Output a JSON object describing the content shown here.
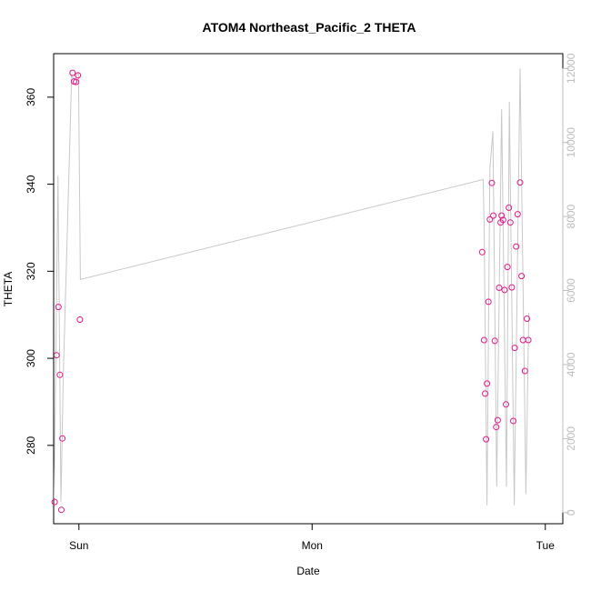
{
  "chart_data": {
    "type": "scatter",
    "title": "ATOM4 Northeast_Pacific_2 THETA",
    "xlabel": "Date",
    "ylabel": "THETA",
    "x_ticks": [
      "Sun",
      "Mon",
      "Tue"
    ],
    "x_tick_hours": [
      0,
      24,
      48
    ],
    "xlim_hours": [
      -2.6,
      49.8
    ],
    "y_ticks": [
      280,
      300,
      320,
      340,
      360
    ],
    "ylim": [
      262,
      370
    ],
    "y2_ticks": [
      0,
      2000,
      4000,
      6000,
      8000,
      10000,
      12000
    ],
    "y2lim": [
      -300,
      12400
    ],
    "colors": {
      "points": "#e0198c",
      "line": "#c8c8c8",
      "axis": "#000000",
      "axis_right": "#bdbdbd"
    },
    "series": [
      {
        "type": "scatter",
        "axis": "left",
        "points": [
          {
            "x": -2.5,
            "y": 267.0
          },
          {
            "x": -2.3,
            "y": 300.7
          },
          {
            "x": -2.1,
            "y": 311.8
          },
          {
            "x": -1.95,
            "y": 296.2
          },
          {
            "x": -1.8,
            "y": 265.2
          },
          {
            "x": -1.7,
            "y": 281.6
          },
          {
            "x": -0.65,
            "y": 365.6
          },
          {
            "x": -0.5,
            "y": 363.6
          },
          {
            "x": -0.3,
            "y": 363.5
          },
          {
            "x": -0.1,
            "y": 365.0
          },
          {
            "x": 0.1,
            "y": 308.9
          },
          {
            "x": 41.5,
            "y": 324.4
          },
          {
            "x": 41.7,
            "y": 304.2
          },
          {
            "x": 41.8,
            "y": 291.9
          },
          {
            "x": 41.9,
            "y": 281.4
          },
          {
            "x": 42.0,
            "y": 294.2
          },
          {
            "x": 42.15,
            "y": 313.0
          },
          {
            "x": 42.3,
            "y": 331.9
          },
          {
            "x": 42.5,
            "y": 340.3
          },
          {
            "x": 42.65,
            "y": 332.8
          },
          {
            "x": 42.8,
            "y": 304.0
          },
          {
            "x": 42.95,
            "y": 284.2
          },
          {
            "x": 43.1,
            "y": 285.8
          },
          {
            "x": 43.25,
            "y": 316.2
          },
          {
            "x": 43.4,
            "y": 331.2
          },
          {
            "x": 43.5,
            "y": 332.8
          },
          {
            "x": 43.65,
            "y": 331.8
          },
          {
            "x": 43.8,
            "y": 315.7
          },
          {
            "x": 43.95,
            "y": 289.4
          },
          {
            "x": 44.1,
            "y": 321.0
          },
          {
            "x": 44.25,
            "y": 334.6
          },
          {
            "x": 44.4,
            "y": 331.2
          },
          {
            "x": 44.55,
            "y": 316.3
          },
          {
            "x": 44.7,
            "y": 285.6
          },
          {
            "x": 44.85,
            "y": 302.4
          },
          {
            "x": 45.0,
            "y": 325.7
          },
          {
            "x": 45.15,
            "y": 333.1
          },
          {
            "x": 45.4,
            "y": 340.4
          },
          {
            "x": 45.55,
            "y": 318.9
          },
          {
            "x": 45.7,
            "y": 304.2
          },
          {
            "x": 45.9,
            "y": 297.1
          },
          {
            "x": 46.1,
            "y": 309.1
          },
          {
            "x": 46.25,
            "y": 304.2
          }
        ]
      },
      {
        "type": "line",
        "axis": "right",
        "points": [
          {
            "x": -2.55,
            "y": 400
          },
          {
            "x": -2.15,
            "y": 9100
          },
          {
            "x": -1.85,
            "y": 300
          },
          {
            "x": -1.6,
            "y": 3800
          },
          {
            "x": -0.75,
            "y": 11800
          },
          {
            "x": -0.45,
            "y": 11700
          },
          {
            "x": -0.05,
            "y": 11900
          },
          {
            "x": 0.15,
            "y": 6300
          },
          {
            "x": 41.6,
            "y": 9000
          },
          {
            "x": 41.7,
            "y": 7800
          },
          {
            "x": 42.0,
            "y": 200
          },
          {
            "x": 42.3,
            "y": 9300
          },
          {
            "x": 42.6,
            "y": 10300
          },
          {
            "x": 43.0,
            "y": 700
          },
          {
            "x": 43.5,
            "y": 10900
          },
          {
            "x": 44.0,
            "y": 700
          },
          {
            "x": 44.3,
            "y": 11100
          },
          {
            "x": 44.8,
            "y": 200
          },
          {
            "x": 45.4,
            "y": 12000
          },
          {
            "x": 46.0,
            "y": 500
          },
          {
            "x": 46.3,
            "y": 5400
          }
        ]
      }
    ]
  }
}
